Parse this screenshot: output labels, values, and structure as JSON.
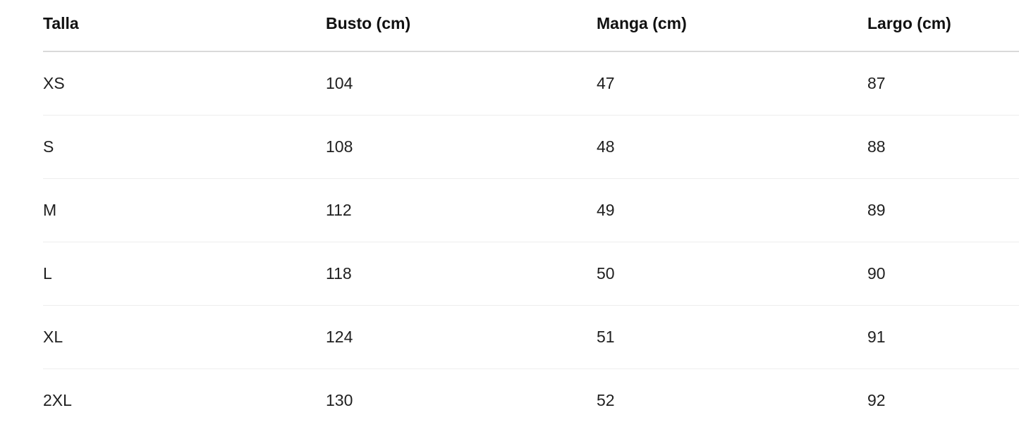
{
  "table": {
    "headers": [
      "Talla",
      "Busto (cm)",
      "Manga (cm)",
      "Largo (cm)"
    ],
    "rows": [
      [
        "XS",
        "104",
        "47",
        "87"
      ],
      [
        "S",
        "108",
        "48",
        "88"
      ],
      [
        "M",
        "112",
        "49",
        "89"
      ],
      [
        "L",
        "118",
        "50",
        "90"
      ],
      [
        "XL",
        "124",
        "51",
        "91"
      ],
      [
        "2XL",
        "130",
        "52",
        "92"
      ]
    ]
  }
}
